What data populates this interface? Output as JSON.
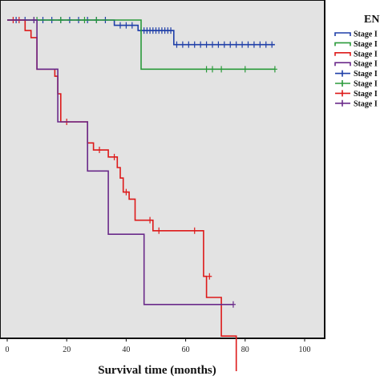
{
  "chart_data": {
    "type": "line",
    "xlabel": "Survival time (months)",
    "xlim": [
      0,
      100
    ],
    "ylim": [
      0,
      1
    ],
    "xticks": [
      "0",
      "20",
      "40",
      "60",
      "80",
      "100"
    ],
    "legend_title": "EN",
    "legend_position": "top-right",
    "grid": false,
    "series": [
      {
        "name": "Stage I",
        "color": "#1f3fa8",
        "steps": [
          [
            0,
            1.0
          ],
          [
            36,
            1.0
          ],
          [
            36,
            0.985
          ],
          [
            44,
            0.985
          ],
          [
            44,
            0.97
          ],
          [
            56,
            0.97
          ],
          [
            56,
            0.93
          ],
          [
            90,
            0.93
          ]
        ],
        "censor": [
          [
            3,
            1.0
          ],
          [
            6,
            1.0
          ],
          [
            9,
            1.0
          ],
          [
            12,
            1.0
          ],
          [
            15,
            1.0
          ],
          [
            18,
            1.0
          ],
          [
            21,
            1.0
          ],
          [
            24,
            1.0
          ],
          [
            27,
            1.0
          ],
          [
            30,
            1.0
          ],
          [
            33,
            1.0
          ],
          [
            38,
            0.985
          ],
          [
            40,
            0.985
          ],
          [
            42,
            0.985
          ],
          [
            45,
            0.97
          ],
          [
            46,
            0.97
          ],
          [
            47,
            0.97
          ],
          [
            48,
            0.97
          ],
          [
            49,
            0.97
          ],
          [
            50,
            0.97
          ],
          [
            51,
            0.97
          ],
          [
            52,
            0.97
          ],
          [
            53,
            0.97
          ],
          [
            54,
            0.97
          ],
          [
            55,
            0.97
          ],
          [
            57,
            0.93
          ],
          [
            59,
            0.93
          ],
          [
            61,
            0.93
          ],
          [
            63,
            0.93
          ],
          [
            65,
            0.93
          ],
          [
            67,
            0.93
          ],
          [
            69,
            0.93
          ],
          [
            71,
            0.93
          ],
          [
            73,
            0.93
          ],
          [
            75,
            0.93
          ],
          [
            77,
            0.93
          ],
          [
            79,
            0.93
          ],
          [
            81,
            0.93
          ],
          [
            83,
            0.93
          ],
          [
            85,
            0.93
          ],
          [
            87,
            0.93
          ],
          [
            89,
            0.93
          ]
        ]
      },
      {
        "name": "Stage I",
        "color": "#2a9a3a",
        "steps": [
          [
            0,
            1.0
          ],
          [
            45,
            1.0
          ],
          [
            45,
            0.86
          ],
          [
            90,
            0.86
          ]
        ],
        "censor": [
          [
            10,
            1.0
          ],
          [
            18,
            1.0
          ],
          [
            26,
            1.0
          ],
          [
            30,
            1.0
          ],
          [
            67,
            0.86
          ],
          [
            69,
            0.86
          ],
          [
            72,
            0.86
          ],
          [
            80,
            0.86
          ],
          [
            90,
            0.86
          ]
        ]
      },
      {
        "name": "Stage I",
        "color": "#dd1a1a",
        "steps": [
          [
            0,
            1.0
          ],
          [
            6,
            1.0
          ],
          [
            6,
            0.97
          ],
          [
            8,
            0.97
          ],
          [
            8,
            0.95
          ],
          [
            10,
            0.95
          ],
          [
            10,
            0.86
          ],
          [
            16,
            0.86
          ],
          [
            16,
            0.84
          ],
          [
            17,
            0.84
          ],
          [
            17,
            0.79
          ],
          [
            18,
            0.79
          ],
          [
            18,
            0.71
          ],
          [
            27,
            0.71
          ],
          [
            27,
            0.65
          ],
          [
            29,
            0.65
          ],
          [
            29,
            0.63
          ],
          [
            34,
            0.63
          ],
          [
            34,
            0.61
          ],
          [
            37,
            0.61
          ],
          [
            37,
            0.58
          ],
          [
            38,
            0.58
          ],
          [
            38,
            0.55
          ],
          [
            39,
            0.55
          ],
          [
            39,
            0.51
          ],
          [
            41,
            0.51
          ],
          [
            41,
            0.49
          ],
          [
            43,
            0.49
          ],
          [
            43,
            0.43
          ],
          [
            49,
            0.43
          ],
          [
            49,
            0.4
          ],
          [
            66,
            0.4
          ],
          [
            66,
            0.27
          ],
          [
            67,
            0.27
          ],
          [
            67,
            0.21
          ],
          [
            72,
            0.21
          ],
          [
            72,
            0.1
          ],
          [
            77,
            0.1
          ],
          [
            77,
            0.0
          ]
        ],
        "censor": [
          [
            2,
            1.0
          ],
          [
            4,
            1.0
          ],
          [
            20,
            0.71
          ],
          [
            31,
            0.63
          ],
          [
            36,
            0.61
          ],
          [
            40,
            0.51
          ],
          [
            48,
            0.43
          ],
          [
            51,
            0.4
          ],
          [
            63,
            0.4
          ],
          [
            68,
            0.27
          ]
        ]
      },
      {
        "name": "Stage I",
        "color": "#6a2a8a",
        "steps": [
          [
            0,
            1.0
          ],
          [
            10,
            1.0
          ],
          [
            10,
            0.86
          ],
          [
            17,
            0.86
          ],
          [
            17,
            0.71
          ],
          [
            27,
            0.71
          ],
          [
            27,
            0.57
          ],
          [
            34,
            0.57
          ],
          [
            34,
            0.39
          ],
          [
            46,
            0.39
          ],
          [
            46,
            0.19
          ],
          [
            76,
            0.19
          ]
        ],
        "censor": [
          [
            9,
            1.0
          ],
          [
            76,
            0.19
          ]
        ]
      }
    ],
    "legend_entries": [
      {
        "label": "Stage I",
        "color": "#1f3fa8",
        "kind": "line"
      },
      {
        "label": "Stage I",
        "color": "#2a9a3a",
        "kind": "line"
      },
      {
        "label": "Stage I",
        "color": "#dd1a1a",
        "kind": "line"
      },
      {
        "label": "Stage I",
        "color": "#6a2a8a",
        "kind": "line"
      },
      {
        "label": "Stage I",
        "color": "#1f3fa8",
        "kind": "censor"
      },
      {
        "label": "Stage I",
        "color": "#2a9a3a",
        "kind": "censor"
      },
      {
        "label": "Stage I",
        "color": "#dd1a1a",
        "kind": "censor"
      },
      {
        "label": "Stage I",
        "color": "#6a2a8a",
        "kind": "censor"
      }
    ]
  }
}
